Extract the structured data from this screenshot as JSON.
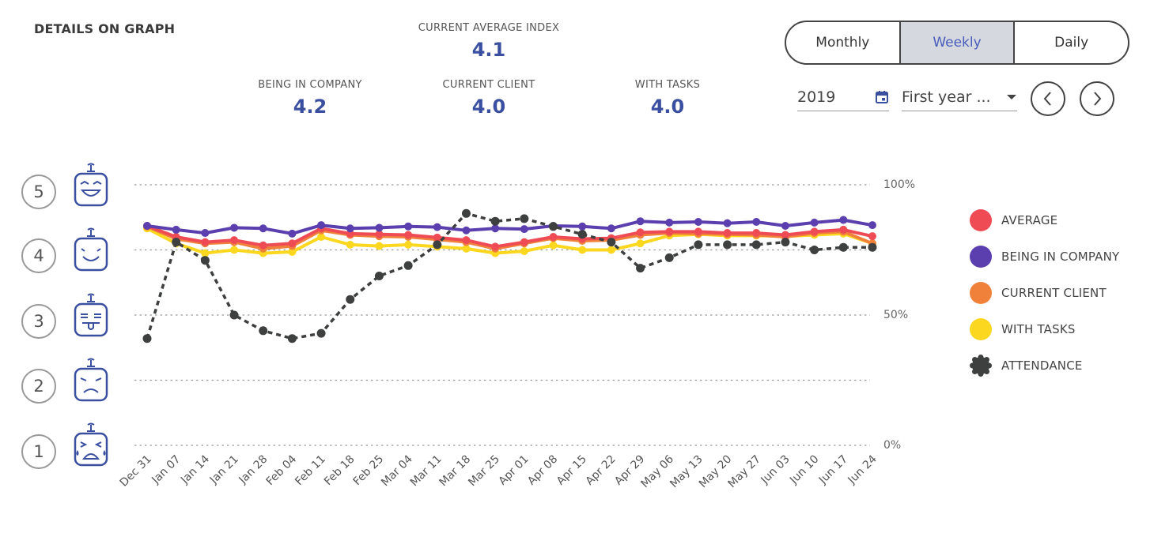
{
  "header": {
    "title": "DETAILS ON GRAPH"
  },
  "stats": {
    "current_average": {
      "label": "CURRENT AVERAGE INDEX",
      "value": "4.1"
    },
    "being_in_company": {
      "label": "BEING IN COMPANY",
      "value": "4.2"
    },
    "current_client": {
      "label": "CURRENT CLIENT",
      "value": "4.0"
    },
    "with_tasks": {
      "label": "WITH TASKS",
      "value": "4.0"
    }
  },
  "period_toggle": {
    "monthly": "Monthly",
    "weekly": "Weekly",
    "daily": "Daily",
    "selected": "Weekly"
  },
  "year_field": {
    "value": "2019",
    "icon": "calendar-icon"
  },
  "range_select": {
    "value": "First year ..."
  },
  "nav": {
    "prev_icon": "chevron-left-icon",
    "next_icon": "chevron-right-icon"
  },
  "scale": {
    "levels": [
      "5",
      "4",
      "3",
      "2",
      "1"
    ],
    "faces": [
      "laughing-face-icon",
      "smiling-face-icon",
      "tongue-face-icon",
      "sad-face-icon",
      "crying-face-icon"
    ]
  },
  "colors": {
    "average": "#ef4b55",
    "being_in_company": "#5b3fae",
    "current_client": "#f0813a",
    "with_tasks": "#fcd720",
    "attendance": "#3d403f",
    "accent": "#3b4fa0"
  },
  "chart_data": {
    "type": "line",
    "title": "DETAILS ON GRAPH",
    "categories": [
      "Dec 31",
      "Jan 07",
      "Jan 14",
      "Jan 21",
      "Jan 28",
      "Feb 04",
      "Feb 11",
      "Feb 18",
      "Feb 25",
      "Mar 04",
      "Mar 11",
      "Mar 18",
      "Mar 25",
      "Apr 01",
      "Apr 08",
      "Apr 15",
      "Apr 22",
      "Apr 29",
      "May 06",
      "May 13",
      "May 20",
      "May 27",
      "Jun 03",
      "Jun 10",
      "Jun 17",
      "Jun 24"
    ],
    "left_axis": {
      "ticks": [
        1,
        2,
        3,
        4,
        5
      ],
      "ylim": [
        1,
        5
      ]
    },
    "right_axis": {
      "tick_labels": [
        "100%",
        "50%",
        "0%"
      ],
      "ylim": [
        0,
        100
      ]
    },
    "grid": true,
    "legend_position": "right",
    "series": [
      {
        "name": "AVERAGE",
        "axis": "left",
        "dashed": false,
        "values": [
          4.37,
          4.2,
          4.12,
          4.15,
          4.07,
          4.1,
          4.33,
          4.25,
          4.24,
          4.23,
          4.19,
          4.15,
          4.05,
          4.12,
          4.2,
          4.17,
          4.18,
          4.27,
          4.28,
          4.28,
          4.26,
          4.26,
          4.23,
          4.28,
          4.31,
          4.21
        ]
      },
      {
        "name": "BEING IN COMPANY",
        "axis": "left",
        "dashed": false,
        "values": [
          4.37,
          4.31,
          4.26,
          4.34,
          4.33,
          4.25,
          4.38,
          4.33,
          4.34,
          4.36,
          4.35,
          4.3,
          4.33,
          4.32,
          4.37,
          4.36,
          4.33,
          4.44,
          4.42,
          4.43,
          4.41,
          4.43,
          4.37,
          4.42,
          4.46,
          4.38
        ]
      },
      {
        "name": "CURRENT CLIENT",
        "axis": "left",
        "dashed": false,
        "values": [
          4.36,
          4.17,
          4.1,
          4.12,
          4.02,
          4.06,
          4.3,
          4.23,
          4.21,
          4.2,
          4.16,
          4.12,
          4.02,
          4.1,
          4.18,
          4.14,
          4.15,
          4.23,
          4.26,
          4.25,
          4.24,
          4.23,
          4.2,
          4.26,
          4.28,
          4.1
        ]
      },
      {
        "name": "WITH TASKS",
        "axis": "left",
        "dashed": false,
        "values": [
          4.33,
          4.1,
          3.95,
          4.0,
          3.95,
          3.97,
          4.2,
          4.08,
          4.06,
          4.08,
          4.05,
          4.02,
          3.95,
          3.98,
          4.07,
          4.0,
          4.0,
          4.1,
          4.22,
          4.24,
          4.22,
          4.22,
          4.21,
          4.23,
          4.25,
          4.1
        ]
      },
      {
        "name": "ATTENDANCE",
        "axis": "right",
        "dashed": true,
        "values": [
          41,
          78,
          71,
          50,
          44,
          41,
          43,
          56,
          65,
          69,
          77,
          89,
          86,
          87,
          84,
          81,
          78,
          68,
          72,
          77,
          77,
          77,
          78,
          75,
          76,
          76
        ]
      }
    ]
  }
}
